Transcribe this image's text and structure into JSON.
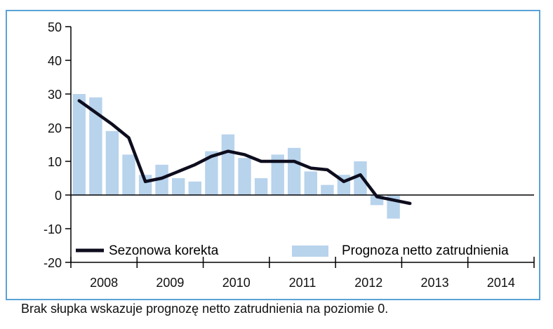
{
  "chart_data": {
    "type": "bar",
    "y_ticks": [
      50,
      40,
      30,
      20,
      10,
      0,
      -10,
      -20
    ],
    "ylim": [
      -20,
      50
    ],
    "years": [
      "2008",
      "2009",
      "2010",
      "2011",
      "2012",
      "2013",
      "2014"
    ],
    "quarters_per_year": 4,
    "series": [
      {
        "name": "Prognoza netto zatrudnienia",
        "kind": "bar",
        "values": [
          30,
          29,
          19,
          12,
          6,
          9,
          5,
          4,
          13,
          18,
          11,
          5,
          12,
          14,
          7,
          3,
          6,
          10,
          -3,
          -7
        ]
      },
      {
        "name": "Sezonowa korekta",
        "kind": "line",
        "values": [
          28,
          24.5,
          21,
          17,
          4,
          5,
          7,
          9,
          11.5,
          13,
          12,
          10,
          10,
          10,
          8,
          7.5,
          4,
          6,
          -0.5,
          -1.5,
          -2.5
        ]
      }
    ],
    "legend": "bottom",
    "grid": false
  },
  "caption": "Brak słupka wskazuje prognozę netto zatrudnienia na poziomie 0.",
  "colors": {
    "bar": "#b8d3ec",
    "line": "#0d0d1e",
    "frame": "#5aa3d7",
    "axis": "#000000"
  }
}
